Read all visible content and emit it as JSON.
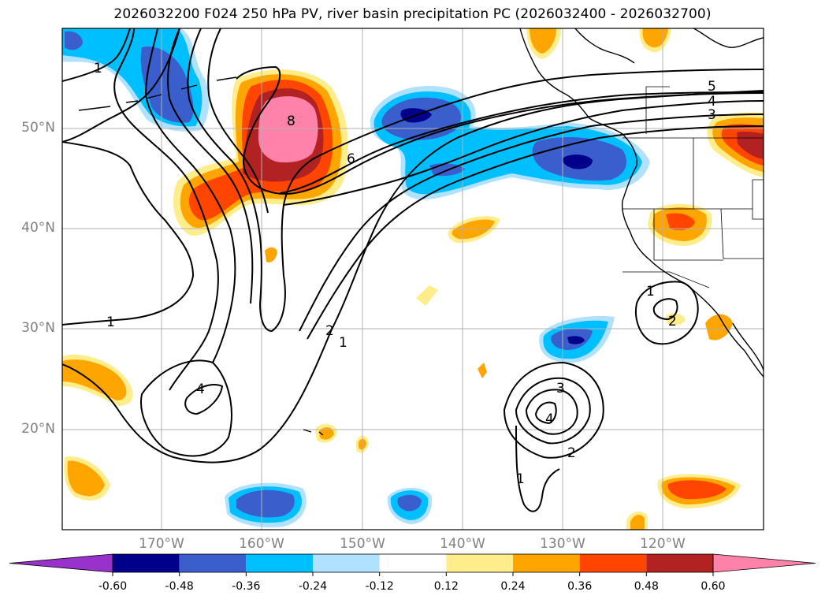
{
  "title": "2026032200 F024 250 hPa PV, river basin precipitation PC (2026032400 - 2026032700)",
  "lat_labels": [
    "50°N",
    "40°N",
    "30°N",
    "20°N"
  ],
  "lon_labels": [
    "170°W",
    "160°W",
    "150°W",
    "140°W",
    "130°W",
    "120°W"
  ],
  "colorbar": {
    "colors": [
      "#9932cc",
      "#00008b",
      "#3a5fcd",
      "#00bfff",
      "#b0e2ff",
      "#ffffff",
      "#ffec8b",
      "#ffa500",
      "#ff4500",
      "#b22222",
      "#ff82ab"
    ],
    "ticks": [
      "-0.60",
      "-0.48",
      "-0.36",
      "-0.24",
      "-0.12",
      "0.12",
      "0.24",
      "0.36",
      "0.48",
      "0.60"
    ]
  },
  "contour_labels": [
    "1",
    "1",
    "8",
    "6",
    "5",
    "4",
    "3",
    "2",
    "1",
    "4",
    "3",
    "2",
    "1",
    "4",
    "1",
    "2"
  ],
  "colors": {
    "axis": "#000000",
    "grid": "#b0b0b0",
    "tick_text": "#808080"
  }
}
